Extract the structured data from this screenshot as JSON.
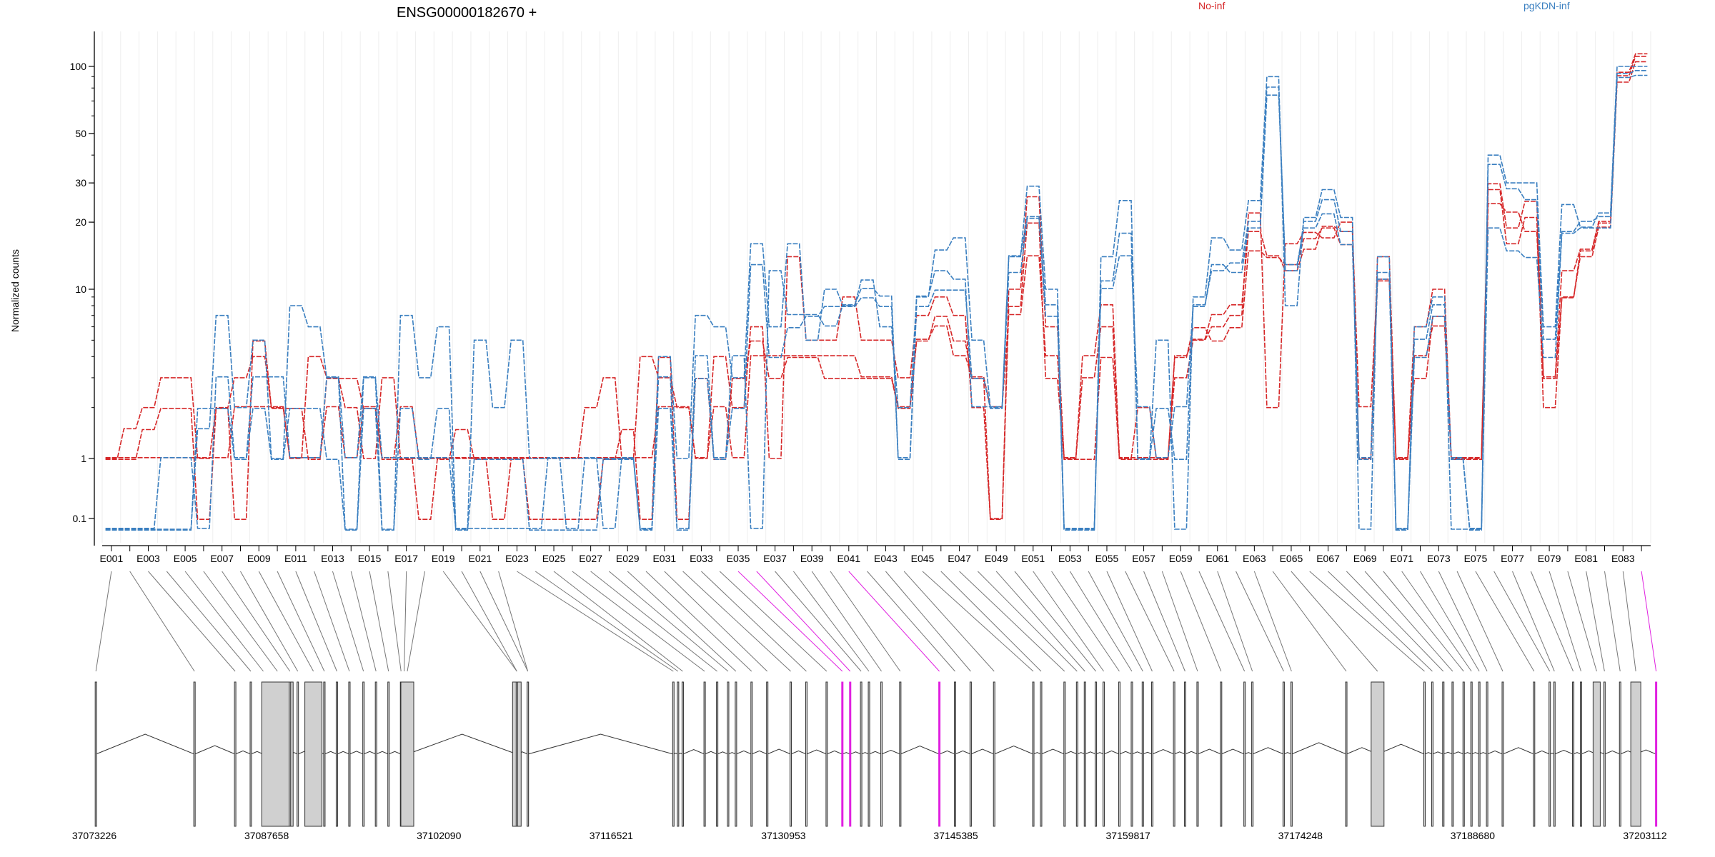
{
  "chart_data": {
    "type": "line",
    "title": "ENSG00000182670 +",
    "ylabel": "Normalized counts",
    "y_scale": "log",
    "y_ticks": [
      "100",
      "50",
      "30",
      "20",
      "10",
      "1",
      "0.1"
    ],
    "legend": {
      "placement": "top",
      "entries": [
        {
          "label": "No-inf",
          "color": "#d62728"
        },
        {
          "label": "pgKDN-inf",
          "color": "#3a7fc0"
        }
      ]
    },
    "x_tick_labels": [
      "E001",
      "E003",
      "E005",
      "E007",
      "E009",
      "E011",
      "E013",
      "E015",
      "E017",
      "E019",
      "E021",
      "E023",
      "E025",
      "E027",
      "E029",
      "E031",
      "E033",
      "E035",
      "E037",
      "E039",
      "E041",
      "E043",
      "E045",
      "E047",
      "E049",
      "E051",
      "E053",
      "E055",
      "E057",
      "E059",
      "E061",
      "E063",
      "E065",
      "E067",
      "E069",
      "E071",
      "E073",
      "E075",
      "E077",
      "E079",
      "E081",
      "E083"
    ],
    "genomic_axis_labels": [
      "37073226",
      "37087658",
      "37102090",
      "37116521",
      "37130953",
      "37145385",
      "37159817",
      "37174248",
      "37188680",
      "37203112"
    ],
    "highlighted_exons": [
      "E035",
      "E036",
      "E041",
      "E084"
    ],
    "highlight_color": "#e020e0",
    "exon_count": 84,
    "series": [
      {
        "name": "No-inf",
        "color": "#d62728",
        "values": [
          1,
          1,
          1,
          1,
          1,
          1,
          1,
          2,
          2,
          2,
          1,
          1,
          2,
          1,
          2,
          1,
          2,
          1,
          1,
          1,
          1,
          1,
          1,
          1,
          1,
          1,
          1,
          1,
          1,
          1,
          2,
          2,
          1,
          2,
          1,
          4,
          4,
          4,
          4,
          4,
          4,
          3,
          3,
          2,
          5,
          6,
          4,
          3,
          2,
          7,
          14,
          4,
          1,
          4,
          8,
          1,
          1,
          1,
          4,
          5,
          7,
          8,
          18,
          14,
          12,
          15,
          19,
          18,
          2,
          11,
          1,
          4,
          6,
          1,
          1,
          24,
          22,
          18,
          3,
          12,
          15,
          20,
          90,
          110
        ]
      },
      {
        "name": "No-inf",
        "color": "#d62728",
        "values": [
          1,
          1.5,
          2,
          3,
          3,
          1,
          2,
          3,
          4,
          2,
          1,
          4,
          3,
          2,
          1,
          3,
          1,
          1,
          1,
          1,
          1,
          1,
          1,
          1,
          1,
          1,
          2,
          3,
          1,
          4,
          3,
          2,
          1,
          4,
          2,
          6,
          1,
          14,
          5,
          5,
          9,
          5,
          5,
          3,
          7,
          9,
          7,
          2,
          0.1,
          10,
          26,
          6,
          1,
          3,
          6,
          1,
          2,
          1,
          3,
          5,
          6,
          7,
          22,
          2,
          16,
          18,
          17,
          20,
          1,
          14,
          1,
          6,
          10,
          1,
          1,
          28,
          16,
          21,
          2,
          9,
          14,
          19,
          85,
          105
        ]
      },
      {
        "name": "No-inf",
        "color": "#d62728",
        "values": [
          1,
          1,
          1.5,
          2,
          2,
          0.1,
          2,
          0.1,
          5,
          2,
          2,
          1,
          3,
          3,
          2,
          1,
          1,
          0.1,
          1,
          1.5,
          1,
          0.1,
          1,
          0.1,
          0.1,
          0.1,
          0.1,
          1,
          1.5,
          0.1,
          4,
          0.1,
          3,
          1,
          3,
          5,
          3,
          4,
          4,
          3,
          3,
          3,
          3,
          2,
          5,
          7,
          5,
          3,
          0.1,
          8,
          20,
          3,
          1,
          1,
          4,
          1,
          1,
          1,
          4,
          6,
          5,
          6,
          15,
          14,
          13,
          17,
          19,
          16,
          1,
          11,
          1,
          3,
          7,
          1,
          1,
          30,
          19,
          25,
          3,
          9,
          15,
          20,
          95,
          115
        ]
      },
      {
        "name": "pgKDN-inf",
        "color": "#3a7fc0",
        "values": [
          0.08,
          0.08,
          0.08,
          1,
          1,
          0.08,
          3,
          1,
          3,
          3,
          1,
          1,
          3,
          1,
          3,
          1,
          1,
          1,
          1,
          0.08,
          0.08,
          0.08,
          0.08,
          0.08,
          1,
          0.08,
          1,
          0.08,
          1,
          0.08,
          3,
          0.08,
          4,
          1,
          4,
          0.08,
          12,
          7,
          7,
          6,
          8,
          10,
          9,
          1,
          9,
          12,
          11,
          2,
          2,
          14,
          21,
          8,
          0.08,
          0.08,
          10,
          14,
          2,
          1,
          2,
          8,
          12,
          13,
          20,
          80,
          12,
          20,
          25,
          18,
          1,
          11,
          0.08,
          5,
          8,
          1,
          0.08,
          36,
          28,
          25,
          5,
          18,
          20,
          21,
          92,
          95
        ]
      },
      {
        "name": "pgKDN-inf",
        "color": "#3a7fc0",
        "values": [
          0.08,
          0.08,
          0.08,
          0.08,
          0.08,
          1.5,
          7,
          2,
          5,
          1,
          8,
          6,
          3,
          0.08,
          3,
          0.08,
          7,
          3,
          6,
          0.08,
          5,
          2,
          5,
          1,
          1,
          1,
          1,
          1,
          1,
          0.08,
          4,
          1,
          7,
          6,
          3,
          16,
          6,
          16,
          5,
          10,
          8,
          11,
          6,
          2,
          9,
          15,
          17,
          5,
          2,
          14,
          29,
          10,
          0.08,
          0.08,
          14,
          25,
          1,
          5,
          0.08,
          9,
          17,
          15,
          25,
          90,
          8,
          21,
          28,
          21,
          0.08,
          14,
          0.08,
          6,
          9,
          0.08,
          0.08,
          40,
          30,
          30,
          6,
          24,
          19,
          22,
          100,
          100
        ]
      },
      {
        "name": "pgKDN-inf",
        "color": "#3a7fc0",
        "values": [
          0.08,
          0.08,
          0.08,
          0.08,
          0.08,
          2,
          2,
          1,
          2,
          1,
          2,
          2,
          1,
          0.08,
          2,
          0.08,
          2,
          1,
          2,
          0.08,
          1,
          1,
          1,
          0.08,
          0.08,
          0.08,
          0.08,
          1,
          1,
          0.08,
          2,
          0.08,
          3,
          1,
          2,
          13,
          4,
          6,
          7,
          8,
          8,
          9,
          8,
          1,
          8,
          10,
          10,
          3,
          2,
          12,
          21,
          7,
          0.08,
          0.08,
          11,
          18,
          1,
          2,
          1,
          8,
          13,
          12,
          19,
          75,
          13,
          19,
          22,
          16,
          1,
          12,
          0.08,
          4,
          7,
          1,
          0.08,
          19,
          15,
          14,
          4,
          18,
          19,
          19,
          90,
          92
        ]
      }
    ]
  }
}
